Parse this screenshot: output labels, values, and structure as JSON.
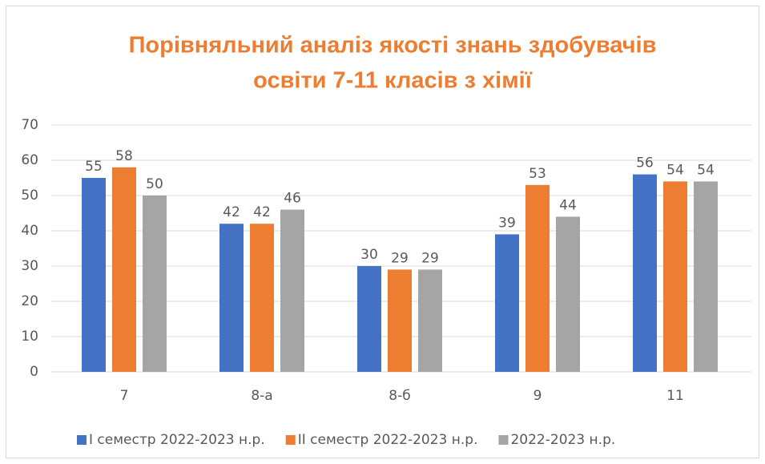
{
  "chart_data": {
    "type": "bar",
    "title": [
      "Порівняльний аналіз якості знань здобувачів",
      "освіти 7-11 класів з  хімії"
    ],
    "categories": [
      "7",
      "8-а",
      "8-б",
      "9",
      "11"
    ],
    "series": [
      {
        "name": "І семестр 2022-2023 н.р.",
        "color": "#4472c4",
        "values": [
          55,
          42,
          30,
          39,
          56
        ]
      },
      {
        "name": "ІІ семестр 2022-2023  н.р.",
        "color": "#ed7d31",
        "values": [
          58,
          42,
          29,
          53,
          54
        ]
      },
      {
        "name": "2022-2023  н.р.",
        "color": "#a5a5a5",
        "values": [
          50,
          46,
          29,
          44,
          54
        ]
      }
    ],
    "ylim": [
      0,
      70
    ],
    "yticks": [
      0,
      10,
      20,
      30,
      40,
      50,
      60,
      70
    ],
    "grid": true,
    "legend": "bottom"
  }
}
